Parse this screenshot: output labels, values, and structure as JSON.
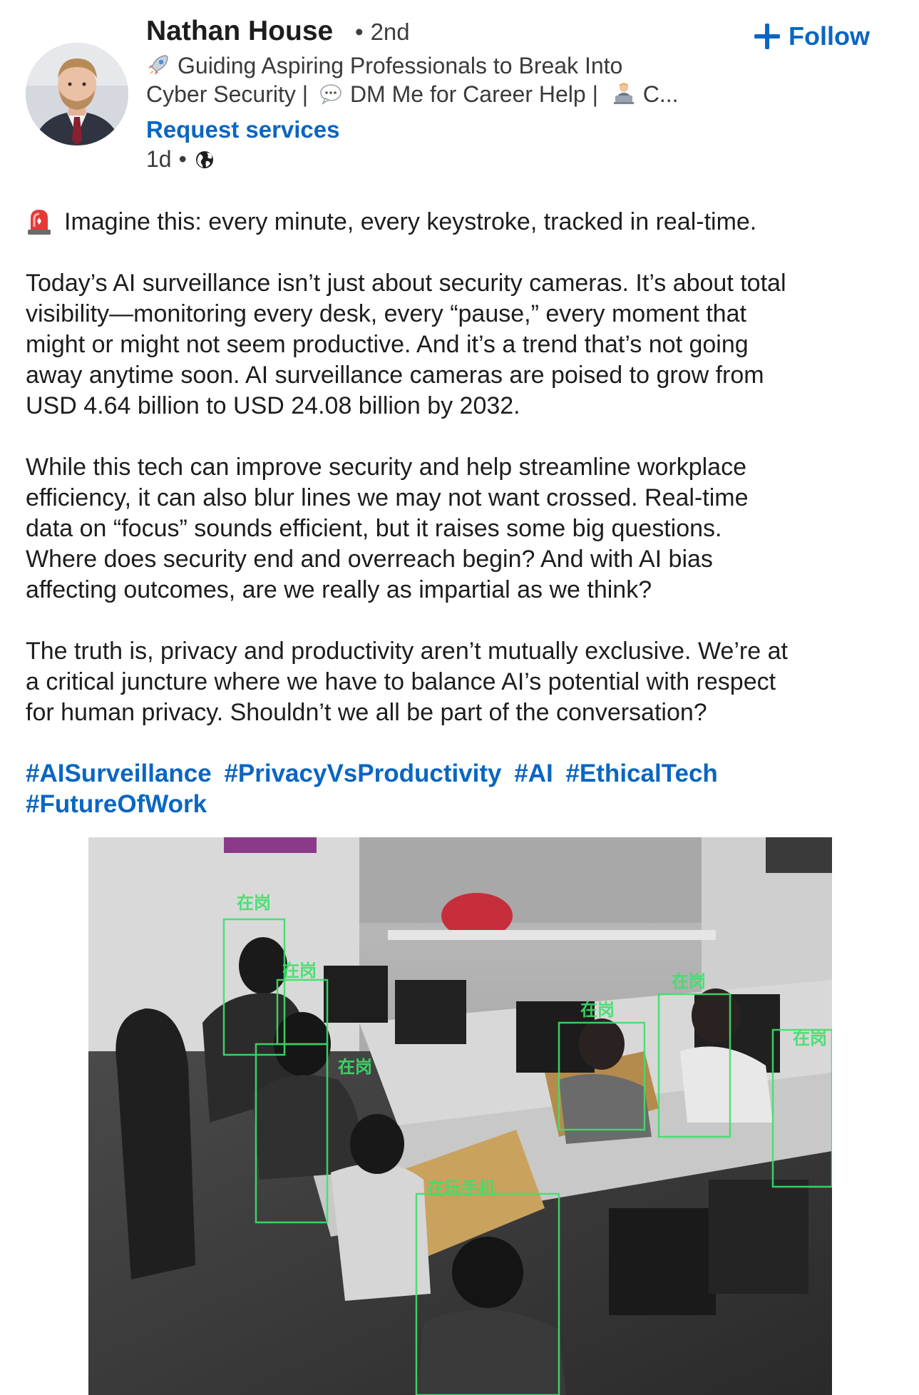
{
  "author": {
    "name": "Nathan House",
    "degree": "2nd",
    "headline_line1": "Guiding Aspiring Professionals to Break Into",
    "headline_line2_a": "Cyber Security |",
    "headline_line2_b": "DM Me for Career Help |",
    "headline_line2_c": "C...",
    "request_services": "Request services",
    "time": "1d",
    "follow_label": "Follow"
  },
  "icons": {
    "rocket": "rocket-icon",
    "speech": "speech-bubble-icon",
    "technologist": "technologist-icon",
    "globe": "globe-icon",
    "alarm": "alarm-light-icon",
    "plus": "plus-icon"
  },
  "post": {
    "intro": "Imagine this: every minute, every keystroke, tracked in real-time.",
    "p1": [
      "Today’s AI surveillance isn’t just about security cameras. It’s about total",
      "visibility—monitoring every desk, every “pause,” every moment that",
      "might or might not seem productive. And it’s a trend that’s not going",
      "away anytime soon. AI surveillance cameras are poised to grow from",
      "USD 4.64 billion to USD 24.08 billion by 2032."
    ],
    "p2": [
      "While this tech can improve security and help streamline workplace",
      "efficiency, it can also blur lines we may not want crossed. Real-time",
      "data on “focus” sounds efficient, but it raises some big questions.",
      "Where does security end and overreach begin? And with AI bias",
      "affecting outcomes, are we really as impartial as we think?"
    ],
    "p3": [
      "The truth is, privacy and productivity aren’t mutually exclusive. We’re at",
      "a critical juncture where we have to balance AI’s potential with respect",
      "for human privacy. Shouldn’t we all be part of the conversation?"
    ],
    "hashtags": [
      "#AISurveillance",
      "#PrivacyVsProductivity",
      "#AI",
      "#EthicalTech",
      "#FutureOfWork"
    ]
  },
  "media": {
    "label_a": "在岗",
    "label_b": "在岗",
    "label_c": "在岗",
    "label_d": "在岗",
    "label_e": "在岗",
    "label_f": "在岗",
    "label_g": "在玩手机"
  },
  "colors": {
    "link": "#0a66c2",
    "text": "#1d1d1d",
    "detect_box": "#3ee06a"
  }
}
